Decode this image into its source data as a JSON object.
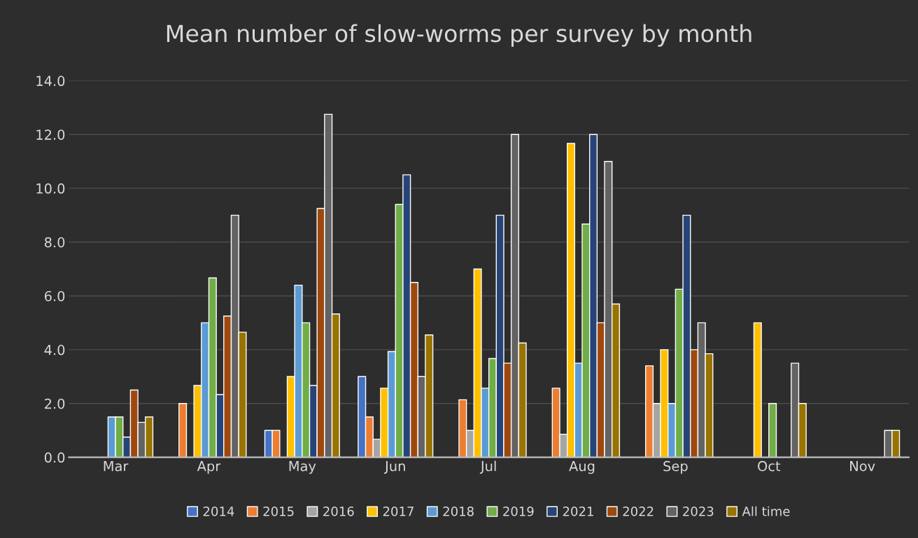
{
  "chart_data": {
    "type": "bar",
    "title": "Mean number of slow-worms per survey by month",
    "categories": [
      "Mar",
      "Apr",
      "May",
      "Jun",
      "Jul",
      "Aug",
      "Sep",
      "Oct",
      "Nov"
    ],
    "series": [
      {
        "name": "2014",
        "color": "#4472c4",
        "values": [
          null,
          null,
          1.0,
          3.0,
          null,
          null,
          null,
          null,
          null
        ]
      },
      {
        "name": "2015",
        "color": "#ed7d31",
        "values": [
          null,
          2.0,
          1.0,
          1.5,
          2.14,
          2.57,
          3.4,
          null,
          null
        ]
      },
      {
        "name": "2016",
        "color": "#a5a5a5",
        "values": [
          null,
          null,
          null,
          0.67,
          1.0,
          0.86,
          2.0,
          null,
          null
        ]
      },
      {
        "name": "2017",
        "color": "#ffc000",
        "values": [
          null,
          2.67,
          3.0,
          2.57,
          7.0,
          11.67,
          4.0,
          5.0,
          null
        ]
      },
      {
        "name": "2018",
        "color": "#5b9bd5",
        "values": [
          1.5,
          5.0,
          6.4,
          3.93,
          2.57,
          3.5,
          2.0,
          null,
          null
        ]
      },
      {
        "name": "2019",
        "color": "#70ad47",
        "values": [
          1.5,
          6.67,
          5.0,
          9.4,
          3.67,
          8.67,
          6.25,
          2.0,
          null
        ]
      },
      {
        "name": "2021",
        "color": "#264478",
        "values": [
          0.75,
          2.33,
          2.67,
          10.5,
          9.0,
          12.0,
          9.0,
          null,
          null
        ]
      },
      {
        "name": "2022",
        "color": "#9e480e",
        "values": [
          2.5,
          5.25,
          9.25,
          6.5,
          3.5,
          5.0,
          4.0,
          null,
          null
        ]
      },
      {
        "name": "2023",
        "color": "#636363",
        "values": [
          1.3,
          9.0,
          12.75,
          3.0,
          12.0,
          11.0,
          5.0,
          3.5,
          1.0
        ]
      },
      {
        "name": "All time",
        "color": "#997300",
        "values": [
          1.5,
          4.65,
          5.33,
          4.55,
          4.25,
          5.7,
          3.85,
          2.0,
          1.0
        ]
      }
    ],
    "ylim": [
      0,
      14
    ],
    "yticks": [
      {
        "value": 0,
        "label": "0.0"
      },
      {
        "value": 2,
        "label": "2.0"
      },
      {
        "value": 4,
        "label": "4.0"
      },
      {
        "value": 6,
        "label": "6.0"
      },
      {
        "value": 8,
        "label": "8.0"
      },
      {
        "value": 10,
        "label": "10.0"
      },
      {
        "value": 12,
        "label": "12.0"
      },
      {
        "value": 14,
        "label": "14.0"
      }
    ],
    "grid": "y",
    "legend": "bottom"
  }
}
